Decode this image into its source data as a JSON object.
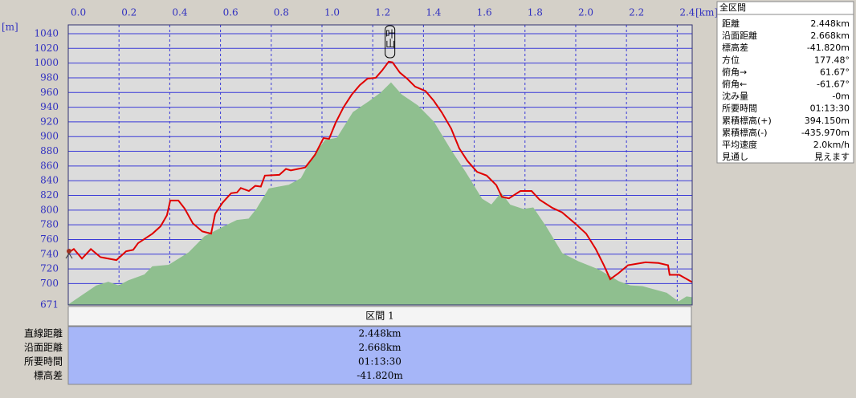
{
  "chart_data": {
    "type": "profile",
    "x_unit": "[km]",
    "y_unit": "[m]",
    "xlim": [
      0,
      2.459
    ],
    "ylim": [
      671,
      1052
    ],
    "xticks": [
      {
        "value": 0,
        "label": "0.0"
      },
      0.2,
      0.4,
      0.6,
      0.8,
      {
        "value": 1,
        "label": "1.0"
      },
      1.2,
      1.4,
      1.6,
      1.8,
      {
        "value": 2,
        "label": "2.0"
      },
      2.2,
      2.4
    ],
    "yticks": [
      671,
      700,
      720,
      740,
      760,
      780,
      800,
      820,
      840,
      860,
      880,
      900,
      920,
      940,
      960,
      980,
      1000,
      1020,
      1040
    ],
    "grid": true,
    "annotation": {
      "text": "叶山",
      "x": 1.268
    },
    "series": [
      {
        "kind": "area",
        "color": "#8fbf8f",
        "x": [
          0,
          0.047,
          0.111,
          0.158,
          0.199,
          0.237,
          0.301,
          0.332,
          0.396,
          0.475,
          0.538,
          0.617,
          0.665,
          0.712,
          0.744,
          0.791,
          0.839,
          0.87,
          0.918,
          0.965,
          1.013,
          1.06,
          1.123,
          1.187,
          1.234,
          1.272,
          1.313,
          1.377,
          1.44,
          1.503,
          1.566,
          1.63,
          1.668,
          1.706,
          1.741,
          1.794,
          1.832,
          1.883,
          1.946,
          2.009,
          2.089,
          2.168,
          2.215,
          2.263,
          2.358,
          2.405,
          2.437,
          2.459
        ],
        "values": [
          671,
          682,
          697,
          702,
          697,
          704,
          712,
          723,
          725,
          742,
          764,
          778,
          786,
          788,
          802,
          829,
          832,
          834,
          843,
          873,
          895,
          898,
          933,
          948,
          960,
          973,
          957,
          942,
          920,
          884,
          851,
          815,
          807,
          823,
          807,
          801,
          803,
          777,
          741,
          730,
          719,
          703,
          697,
          696,
          687,
          675,
          682,
          681
        ]
      },
      {
        "kind": "line",
        "color": "#e00000",
        "x": [
          0,
          0.022,
          0.054,
          0.089,
          0.127,
          0.19,
          0.228,
          0.256,
          0.275,
          0.332,
          0.364,
          0.389,
          0.402,
          0.434,
          0.459,
          0.491,
          0.528,
          0.563,
          0.579,
          0.608,
          0.642,
          0.665,
          0.68,
          0.712,
          0.737,
          0.759,
          0.775,
          0.832,
          0.858,
          0.877,
          0.934,
          0.972,
          1.006,
          1.028,
          1.054,
          1.085,
          1.117,
          1.149,
          1.18,
          1.212,
          1.237,
          1.263,
          1.278,
          1.307,
          1.335,
          1.367,
          1.408,
          1.44,
          1.472,
          1.509,
          1.541,
          1.573,
          1.611,
          1.649,
          1.687,
          1.709,
          1.737,
          1.782,
          1.826,
          1.858,
          1.908,
          1.946,
          1.997,
          2.041,
          2.079,
          2.111,
          2.136,
          2.168,
          2.206,
          2.275,
          2.326,
          2.364,
          2.37,
          2.408,
          2.459
        ],
        "values": [
          742,
          747,
          734,
          747,
          736,
          732,
          744,
          746,
          755,
          768,
          778,
          793,
          813,
          813,
          802,
          782,
          771,
          768,
          795,
          810,
          823,
          824,
          830,
          826,
          833,
          832,
          847,
          848,
          856,
          854,
          858,
          875,
          898,
          897,
          919,
          940,
          957,
          970,
          979,
          980,
          990,
          1002,
          1001,
          987,
          979,
          968,
          962,
          949,
          933,
          911,
          884,
          867,
          852,
          847,
          834,
          818,
          816,
          826,
          826,
          814,
          803,
          797,
          782,
          768,
          747,
          725,
          706,
          714,
          725,
          729,
          728,
          725,
          712,
          712,
          702
        ]
      }
    ]
  },
  "summary": {
    "title": "全区間",
    "rows": [
      [
        "距離",
        "2.448km"
      ],
      [
        "沿面距離",
        "2.668km"
      ],
      [
        "標高差",
        "-41.820m"
      ],
      [
        "方位",
        "177.48°"
      ],
      [
        "俯角→",
        "61.67°"
      ],
      [
        "俯角←",
        "-61.67°"
      ],
      [
        "沈み量",
        "-0m"
      ],
      [
        "所要時間",
        "01:13:30"
      ],
      [
        "累積標高(+)",
        "394.150m"
      ],
      [
        "累積標高(-)",
        "-435.970m"
      ],
      [
        "平均速度",
        "2.0km/h"
      ],
      [
        "見通し",
        "見えます"
      ]
    ]
  },
  "section": {
    "header": "区間 1",
    "rows": [
      [
        "直線距離",
        "2.448km"
      ],
      [
        "沿面距離",
        "2.668km"
      ],
      [
        "所要時間",
        "01:13:30"
      ],
      [
        "標高差",
        "-41.820m"
      ]
    ]
  }
}
